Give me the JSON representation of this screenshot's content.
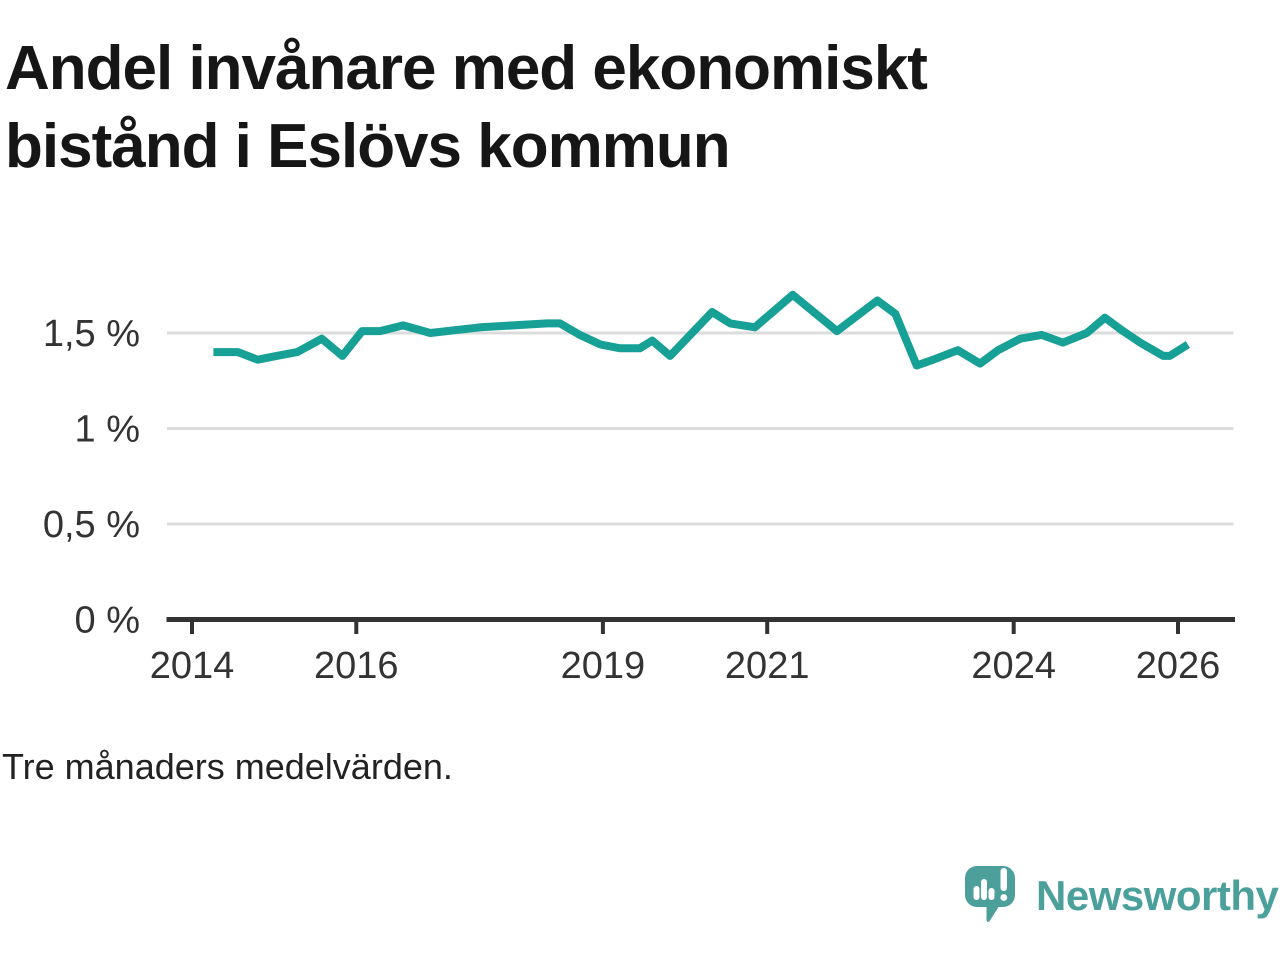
{
  "title": "Andel invånare med ekonomiskt bistånd i Eslövs kommun",
  "footnote": "Tre månaders medelvärden.",
  "branding": {
    "wordmark": "Newsworthy",
    "logo_icon": "newsworthy-speech-bubble-bar-chart-icon"
  },
  "colors": {
    "line": "#16A096",
    "brand": "#4BA09B",
    "grid": "#DCDCDC",
    "axis": "#333333",
    "tick_text": "#333333"
  },
  "chart_data": {
    "type": "line",
    "title": "Andel invånare med ekonomiskt bistånd i Eslövs kommun",
    "note": "Tre månaders medelvärden.",
    "unit": "%",
    "grid": true,
    "legend": "none",
    "x_axis": {
      "range": [
        2013.7,
        2026.7
      ],
      "ticks": [
        {
          "value": 2014,
          "label": "2014"
        },
        {
          "value": 2016,
          "label": "2016"
        },
        {
          "value": 2019,
          "label": "2019"
        },
        {
          "value": 2021,
          "label": "2021"
        },
        {
          "value": 2024,
          "label": "2024"
        },
        {
          "value": 2026,
          "label": "2026"
        }
      ]
    },
    "y_axis": {
      "range": [
        0,
        1.8
      ],
      "ticks": [
        {
          "value": 0,
          "label": "0 %"
        },
        {
          "value": 0.5,
          "label": "0,5 %"
        },
        {
          "value": 1,
          "label": "1 %"
        },
        {
          "value": 1.5,
          "label": "1,5 %"
        }
      ]
    },
    "series": [
      {
        "name": "Andel invånare med ekonomiskt bistånd",
        "color": "#16A096",
        "points": [
          [
            2014.26,
            1.4
          ],
          [
            2014.56,
            1.4
          ],
          [
            2014.8,
            1.36
          ],
          [
            2015.03,
            1.38
          ],
          [
            2015.28,
            1.4
          ],
          [
            2015.58,
            1.47
          ],
          [
            2015.83,
            1.38
          ],
          [
            2016.07,
            1.51
          ],
          [
            2016.29,
            1.51
          ],
          [
            2016.57,
            1.54
          ],
          [
            2016.9,
            1.5
          ],
          [
            2017.51,
            1.53
          ],
          [
            2018.32,
            1.55
          ],
          [
            2018.48,
            1.55
          ],
          [
            2018.72,
            1.49
          ],
          [
            2018.97,
            1.44
          ],
          [
            2019.21,
            1.42
          ],
          [
            2019.45,
            1.42
          ],
          [
            2019.6,
            1.46
          ],
          [
            2019.82,
            1.38
          ],
          [
            2020.33,
            1.61
          ],
          [
            2020.55,
            1.55
          ],
          [
            2020.85,
            1.53
          ],
          [
            2021.31,
            1.7
          ],
          [
            2021.85,
            1.51
          ],
          [
            2022.34,
            1.67
          ],
          [
            2022.56,
            1.6
          ],
          [
            2022.82,
            1.33
          ],
          [
            2023.02,
            1.36
          ],
          [
            2023.32,
            1.41
          ],
          [
            2023.59,
            1.34
          ],
          [
            2023.81,
            1.41
          ],
          [
            2024.08,
            1.47
          ],
          [
            2024.34,
            1.49
          ],
          [
            2024.6,
            1.45
          ],
          [
            2024.89,
            1.5
          ],
          [
            2025.11,
            1.58
          ],
          [
            2025.33,
            1.51
          ],
          [
            2025.54,
            1.45
          ],
          [
            2025.82,
            1.38
          ],
          [
            2025.9,
            1.38
          ],
          [
            2026.12,
            1.44
          ]
        ]
      }
    ]
  }
}
